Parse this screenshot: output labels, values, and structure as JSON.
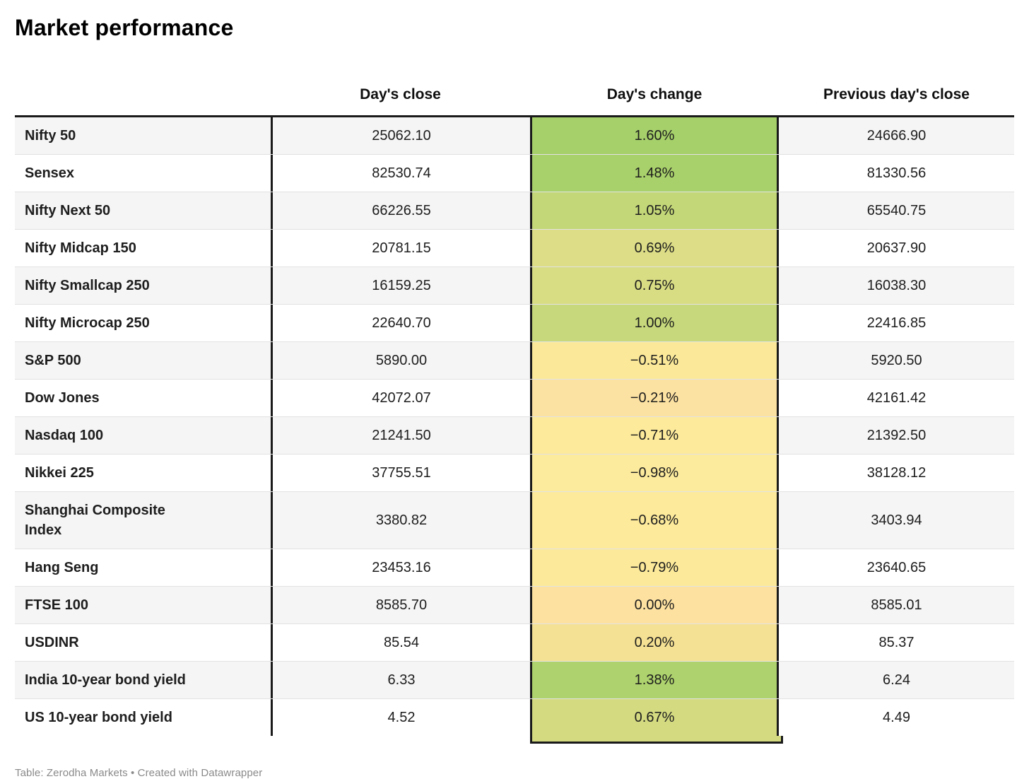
{
  "title": "Market performance",
  "table": {
    "columns": {
      "label": "",
      "close": "Day's close",
      "change": "Day's change",
      "prev": "Previous day's close"
    },
    "rows": [
      {
        "label": "Nifty 50",
        "close": "25062.10",
        "change": "1.60%",
        "change_bg": "#a6d06a",
        "prev": "24666.90"
      },
      {
        "label": "Sensex",
        "close": "82530.74",
        "change": "1.48%",
        "change_bg": "#a9d16b",
        "prev": "81330.56"
      },
      {
        "label": "Nifty Next 50",
        "close": "66226.55",
        "change": "1.05%",
        "change_bg": "#c3d778",
        "prev": "65540.75"
      },
      {
        "label": "Nifty Midcap 150",
        "close": "20781.15",
        "change": "0.69%",
        "change_bg": "#dcdd86",
        "prev": "20637.90"
      },
      {
        "label": "Nifty Smallcap 250",
        "close": "16159.25",
        "change": "0.75%",
        "change_bg": "#d8dc83",
        "prev": "16038.30"
      },
      {
        "label": "Nifty Microcap 250",
        "close": "22640.70",
        "change": "1.00%",
        "change_bg": "#c6d87b",
        "prev": "22416.85"
      },
      {
        "label": "S&P 500",
        "close": "5890.00",
        "change": "−0.51%",
        "change_bg": "#fbe999",
        "prev": "5920.50"
      },
      {
        "label": "Dow Jones",
        "close": "42072.07",
        "change": "−0.21%",
        "change_bg": "#fce2a2",
        "prev": "42161.42"
      },
      {
        "label": "Nasdaq 100",
        "close": "21241.50",
        "change": "−0.71%",
        "change_bg": "#fdea9b",
        "prev": "21392.50"
      },
      {
        "label": "Nikkei 225",
        "close": "37755.51",
        "change": "−0.98%",
        "change_bg": "#fdeb9d",
        "prev": "38128.12"
      },
      {
        "label": "Shanghai Composite\nIndex",
        "close": "3380.82",
        "change": "−0.68%",
        "change_bg": "#fdea9b",
        "prev": "3403.94"
      },
      {
        "label": "Hang Seng",
        "close": "23453.16",
        "change": "−0.79%",
        "change_bg": "#fcea9a",
        "prev": "23640.65"
      },
      {
        "label": "FTSE 100",
        "close": "8585.70",
        "change": "0.00%",
        "change_bg": "#fce1a0",
        "prev": "8585.01"
      },
      {
        "label": "USDINR",
        "close": "85.54",
        "change": "0.20%",
        "change_bg": "#f5e193",
        "prev": "85.37"
      },
      {
        "label": "India 10-year bond yield",
        "close": "6.33",
        "change": "1.38%",
        "change_bg": "#aed26d",
        "prev": "6.24"
      },
      {
        "label": "US 10-year bond yield",
        "close": "4.52",
        "change": "0.67%",
        "change_bg": "#d3da80",
        "prev": "4.49"
      }
    ]
  },
  "footer": {
    "text": "Table: Zerodha Markets • Created with Datawrapper"
  },
  "chart_data": {
    "type": "table",
    "title": "Market performance",
    "columns": [
      "",
      "Day's close",
      "Day's change (%)",
      "Previous day's close"
    ],
    "rows": [
      [
        "Nifty 50",
        25062.1,
        1.6,
        24666.9
      ],
      [
        "Sensex",
        82530.74,
        1.48,
        81330.56
      ],
      [
        "Nifty Next 50",
        66226.55,
        1.05,
        65540.75
      ],
      [
        "Nifty Midcap 150",
        20781.15,
        0.69,
        20637.9
      ],
      [
        "Nifty Smallcap 250",
        16159.25,
        0.75,
        16038.3
      ],
      [
        "Nifty Microcap 250",
        22640.7,
        1.0,
        22416.85
      ],
      [
        "S&P 500",
        5890.0,
        -0.51,
        5920.5
      ],
      [
        "Dow Jones",
        42072.07,
        -0.21,
        42161.42
      ],
      [
        "Nasdaq 100",
        21241.5,
        -0.71,
        21392.5
      ],
      [
        "Nikkei 225",
        37755.51,
        -0.98,
        38128.12
      ],
      [
        "Shanghai Composite Index",
        3380.82,
        -0.68,
        3403.94
      ],
      [
        "Hang Seng",
        23453.16,
        -0.79,
        23640.65
      ],
      [
        "FTSE 100",
        8585.7,
        0.0,
        8585.01
      ],
      [
        "USDINR",
        85.54,
        0.2,
        85.37
      ],
      [
        "India 10-year bond yield",
        6.33,
        1.38,
        6.24
      ],
      [
        "US 10-year bond yield",
        4.52,
        0.67,
        4.49
      ]
    ],
    "heatmap_column": "Day's change (%)",
    "heatmap_scale": "green for strong positive, yellow-green for mild positive, yellow/orange for near-zero and negative",
    "source_note": "Table: Zerodha Markets • Created with Datawrapper"
  }
}
